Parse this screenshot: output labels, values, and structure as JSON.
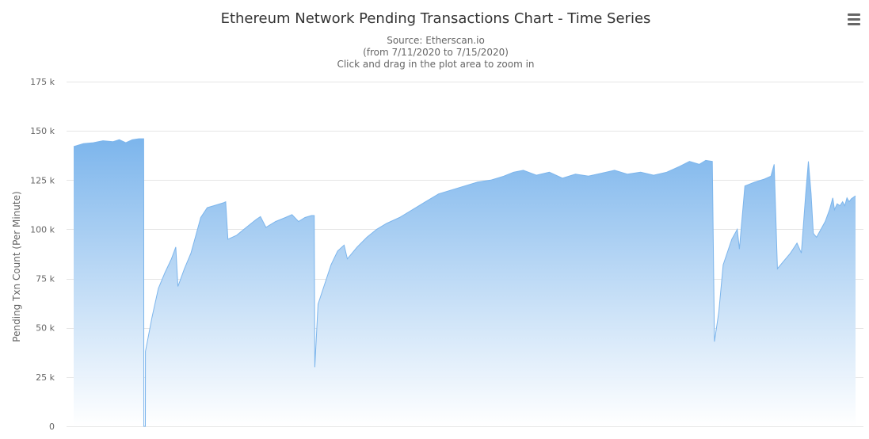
{
  "chart_data": {
    "type": "area",
    "title": "Ethereum Network Pending Transactions Chart - Time Series",
    "subtitle_lines": [
      "Source: Etherscan.io",
      "(from 7/11/2020 to 7/15/2020)",
      "Click and drag in the plot area to zoom in"
    ],
    "ylabel": "Pending Txn Count (Per Minute)",
    "xlabel": "",
    "ylim": [
      0,
      175000
    ],
    "y_ticks": [
      0,
      25000,
      50000,
      75000,
      100000,
      125000,
      150000,
      175000
    ],
    "y_tick_labels": [
      "0",
      "25 k",
      "50 k",
      "75 k",
      "100 k",
      "125 k",
      "150 k",
      "175 k"
    ],
    "grid": true,
    "legend": "none",
    "colors": {
      "fill_top": "#7cb5ec",
      "fill_bottom": "#ffffff",
      "line": "#7cb5ec"
    },
    "x_range": [
      "2020-07-11 00:00",
      "2020-07-15 23:59"
    ],
    "series": [
      {
        "points": [
          [
            "2020-07-11 00:00",
            142000
          ],
          [
            "2020-07-11 01:30",
            143500
          ],
          [
            "2020-07-11 03:00",
            144000
          ],
          [
            "2020-07-11 04:30",
            145000
          ],
          [
            "2020-07-11 06:00",
            144500
          ],
          [
            "2020-07-11 07:00",
            145500
          ],
          [
            "2020-07-11 08:00",
            144000
          ],
          [
            "2020-07-11 09:00",
            145500
          ],
          [
            "2020-07-11 10:00",
            146000
          ],
          [
            "2020-07-11 10:45",
            146000
          ],
          [
            "2020-07-11 10:46",
            0
          ],
          [
            "2020-07-11 11:00",
            0
          ],
          [
            "2020-07-11 11:01",
            38000
          ],
          [
            "2020-07-11 12:00",
            55000
          ],
          [
            "2020-07-11 13:00",
            70000
          ],
          [
            "2020-07-11 14:00",
            78000
          ],
          [
            "2020-07-11 15:00",
            85000
          ],
          [
            "2020-07-11 15:40",
            91000
          ],
          [
            "2020-07-11 16:00",
            71000
          ],
          [
            "2020-07-11 17:00",
            80000
          ],
          [
            "2020-07-11 18:00",
            88000
          ],
          [
            "2020-07-11 18:40",
            96000
          ],
          [
            "2020-07-11 19:30",
            106000
          ],
          [
            "2020-07-11 20:30",
            111000
          ],
          [
            "2020-07-11 21:30",
            112000
          ],
          [
            "2020-07-11 23:00",
            113500
          ],
          [
            "2020-07-11 23:20",
            114000
          ],
          [
            "2020-07-11 23:40",
            95000
          ],
          [
            "2020-07-12 01:00",
            97000
          ],
          [
            "2020-07-12 02:30",
            101000
          ],
          [
            "2020-07-12 04:00",
            105000
          ],
          [
            "2020-07-12 04:40",
            106500
          ],
          [
            "2020-07-12 05:30",
            101000
          ],
          [
            "2020-07-12 07:00",
            104000
          ],
          [
            "2020-07-12 08:30",
            106000
          ],
          [
            "2020-07-12 09:30",
            107500
          ],
          [
            "2020-07-12 10:30",
            104000
          ],
          [
            "2020-07-12 11:30",
            106000
          ],
          [
            "2020-07-12 12:30",
            107000
          ],
          [
            "2020-07-12 12:55",
            107000
          ],
          [
            "2020-07-12 13:00",
            30000
          ],
          [
            "2020-07-12 13:30",
            62000
          ],
          [
            "2020-07-12 14:30",
            72000
          ],
          [
            "2020-07-12 15:30",
            82000
          ],
          [
            "2020-07-12 16:30",
            89000
          ],
          [
            "2020-07-12 17:30",
            92000
          ],
          [
            "2020-07-12 18:00",
            85000
          ],
          [
            "2020-07-12 19:30",
            91000
          ],
          [
            "2020-07-12 21:00",
            96000
          ],
          [
            "2020-07-12 22:30",
            100000
          ],
          [
            "2020-07-13 00:00",
            103000
          ],
          [
            "2020-07-13 02:00",
            106000
          ],
          [
            "2020-07-13 04:00",
            110000
          ],
          [
            "2020-07-13 06:00",
            114000
          ],
          [
            "2020-07-13 08:00",
            118000
          ],
          [
            "2020-07-13 10:00",
            120000
          ],
          [
            "2020-07-13 12:00",
            122000
          ],
          [
            "2020-07-13 14:00",
            124000
          ],
          [
            "2020-07-13 16:00",
            125000
          ],
          [
            "2020-07-13 18:00",
            127000
          ],
          [
            "2020-07-13 19:30",
            129000
          ],
          [
            "2020-07-13 21:00",
            130000
          ],
          [
            "2020-07-13 23:00",
            127500
          ],
          [
            "2020-07-14 01:00",
            129000
          ],
          [
            "2020-07-14 03:00",
            126000
          ],
          [
            "2020-07-14 05:00",
            128000
          ],
          [
            "2020-07-14 07:00",
            127000
          ],
          [
            "2020-07-14 09:00",
            128500
          ],
          [
            "2020-07-14 11:00",
            130000
          ],
          [
            "2020-07-14 13:00",
            128000
          ],
          [
            "2020-07-14 15:00",
            129000
          ],
          [
            "2020-07-14 17:00",
            127500
          ],
          [
            "2020-07-14 19:00",
            129000
          ],
          [
            "2020-07-14 21:00",
            132000
          ],
          [
            "2020-07-14 22:30",
            134500
          ],
          [
            "2020-07-15 00:00",
            133000
          ],
          [
            "2020-07-15 01:00",
            135000
          ],
          [
            "2020-07-15 02:00",
            134500
          ],
          [
            "2020-07-15 02:20",
            43000
          ],
          [
            "2020-07-15 03:00",
            58000
          ],
          [
            "2020-07-15 03:40",
            82000
          ],
          [
            "2020-07-15 05:00",
            95000
          ],
          [
            "2020-07-15 05:50",
            100000
          ],
          [
            "2020-07-15 06:10",
            90000
          ],
          [
            "2020-07-15 07:00",
            122000
          ],
          [
            "2020-07-15 08:30",
            124000
          ],
          [
            "2020-07-15 10:00",
            125500
          ],
          [
            "2020-07-15 11:00",
            127000
          ],
          [
            "2020-07-15 11:30",
            133000
          ],
          [
            "2020-07-15 12:00",
            80000
          ],
          [
            "2020-07-15 13:00",
            84000
          ],
          [
            "2020-07-15 14:00",
            88000
          ],
          [
            "2020-07-15 15:00",
            93000
          ],
          [
            "2020-07-15 15:40",
            88000
          ],
          [
            "2020-07-15 16:20",
            118000
          ],
          [
            "2020-07-15 16:45",
            134500
          ],
          [
            "2020-07-15 17:10",
            118000
          ],
          [
            "2020-07-15 17:30",
            98000
          ],
          [
            "2020-07-15 18:00",
            96000
          ],
          [
            "2020-07-15 18:40",
            100000
          ],
          [
            "2020-07-15 19:20",
            104000
          ],
          [
            "2020-07-15 20:00",
            110000
          ],
          [
            "2020-07-15 20:30",
            116000
          ],
          [
            "2020-07-15 20:45",
            110000
          ],
          [
            "2020-07-15 21:10",
            113000
          ],
          [
            "2020-07-15 21:35",
            112000
          ],
          [
            "2020-07-15 22:00",
            114000
          ],
          [
            "2020-07-15 22:20",
            112000
          ],
          [
            "2020-07-15 22:40",
            116000
          ],
          [
            "2020-07-15 23:00",
            114000
          ],
          [
            "2020-07-15 23:20",
            115500
          ],
          [
            "2020-07-15 23:59",
            117000
          ]
        ]
      }
    ]
  }
}
